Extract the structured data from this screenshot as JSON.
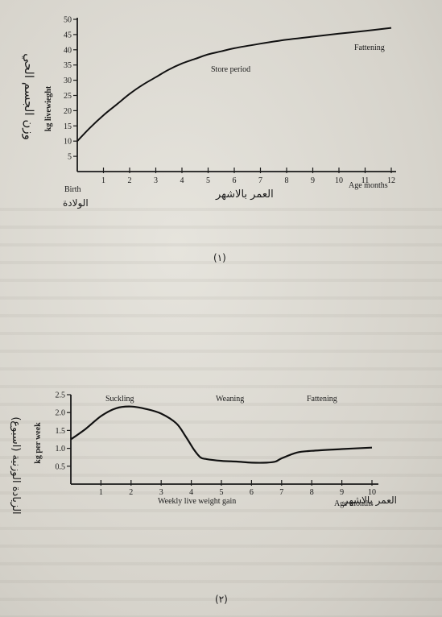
{
  "chart_data": [
    {
      "type": "line",
      "xlabel": "Age months",
      "xlabel_ar": "العمر بالاشهر",
      "ylabel": "kg livewieght",
      "ylabel_ar": "وزن الجسم الحي",
      "x_start_label": "Birth",
      "x_start_label_ar": "الولادة",
      "xlim": [
        0,
        12
      ],
      "ylim": [
        0,
        50
      ],
      "xticks": [
        "1",
        "2",
        "3",
        "4",
        "5",
        "6",
        "7",
        "8",
        "9",
        "10",
        "11",
        "12"
      ],
      "yticks": [
        "5",
        "10",
        "15",
        "20",
        "25",
        "30",
        "35",
        "40",
        "45",
        "50"
      ],
      "annotations": [
        "Store period",
        "Fattening"
      ],
      "series": [
        {
          "x": [
            0,
            0.5,
            1,
            1.5,
            2,
            2.5,
            3,
            3.5,
            4,
            4.5,
            5,
            5.5,
            6,
            7,
            8,
            9,
            10,
            11,
            12
          ],
          "y": [
            10,
            14.5,
            18.5,
            22,
            25.5,
            28.5,
            31,
            33.5,
            35.5,
            37,
            38.5,
            39.5,
            40.5,
            42,
            43.3,
            44.3,
            45.3,
            46.2,
            47.2
          ]
        }
      ],
      "caption": "(١)"
    },
    {
      "type": "line",
      "xlabel": "Age months",
      "xlabel_ar": "العمر بالاشهر",
      "ylabel": "kg per week",
      "ylabel_ar": "الزيادة الوزنية (اسبوع)",
      "subtitle": "Weekly live weight gain",
      "xlim": [
        0,
        10
      ],
      "ylim": [
        0,
        2.5
      ],
      "xticks": [
        "1",
        "2",
        "3",
        "4",
        "5",
        "6",
        "7",
        "8",
        "9",
        "10"
      ],
      "yticks": [
        "0.5",
        "1.0",
        "1.5",
        "2.0",
        "2.5"
      ],
      "annotations": [
        "Suckling",
        "Weaning",
        "Fattening"
      ],
      "series": [
        {
          "x": [
            0,
            0.5,
            1,
            1.5,
            2,
            2.5,
            3,
            3.5,
            3.8,
            4.1,
            4.3,
            4.5,
            5,
            5.5,
            6,
            6.5,
            6.8,
            7,
            7.5,
            8,
            9,
            10
          ],
          "y": [
            1.25,
            1.55,
            1.9,
            2.12,
            2.17,
            2.1,
            1.97,
            1.7,
            1.35,
            0.95,
            0.75,
            0.7,
            0.65,
            0.63,
            0.6,
            0.6,
            0.63,
            0.72,
            0.88,
            0.93,
            0.98,
            1.02
          ]
        }
      ],
      "caption": "(٢)"
    }
  ]
}
